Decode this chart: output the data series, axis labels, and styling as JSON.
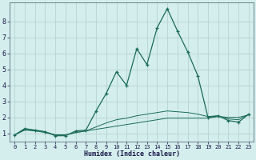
{
  "xlabel": "Humidex (Indice chaleur)",
  "bg_color": "#d4eeed",
  "grid_color": "#b0cccc",
  "line_color": "#1a6b5a",
  "xlim_min": -0.5,
  "xlim_max": 23.5,
  "ylim_min": 0.5,
  "ylim_max": 9.2,
  "xticks": [
    0,
    1,
    2,
    3,
    4,
    5,
    6,
    7,
    8,
    9,
    10,
    11,
    12,
    13,
    14,
    15,
    16,
    17,
    18,
    19,
    20,
    21,
    22,
    23
  ],
  "yticks": [
    1,
    2,
    3,
    4,
    5,
    6,
    7,
    8
  ],
  "series1_x": [
    0,
    1,
    2,
    3,
    4,
    5,
    6,
    7,
    8,
    9,
    10,
    11,
    12,
    13,
    14,
    15,
    16,
    17,
    18,
    19,
    20,
    21,
    22,
    23
  ],
  "series1_y": [
    0.9,
    1.3,
    1.2,
    1.1,
    0.85,
    0.85,
    1.15,
    1.2,
    2.4,
    3.5,
    4.85,
    4.0,
    6.3,
    5.3,
    7.6,
    8.8,
    7.4,
    6.1,
    4.6,
    2.0,
    2.1,
    1.8,
    1.7,
    2.2
  ],
  "series2_x": [
    0,
    1,
    2,
    3,
    4,
    5,
    6,
    7,
    8,
    9,
    10,
    11,
    12,
    13,
    14,
    15,
    16,
    17,
    18,
    19,
    20,
    21,
    22,
    23
  ],
  "series2_y": [
    0.9,
    1.2,
    1.15,
    1.05,
    0.9,
    0.9,
    1.05,
    1.15,
    1.25,
    1.35,
    1.45,
    1.55,
    1.65,
    1.75,
    1.85,
    1.95,
    1.95,
    1.95,
    1.95,
    1.95,
    2.05,
    2.0,
    2.0,
    2.15
  ],
  "series3_x": [
    0,
    1,
    2,
    3,
    4,
    5,
    6,
    7,
    8,
    9,
    10,
    11,
    12,
    13,
    14,
    15,
    16,
    17,
    18,
    19,
    20,
    21,
    22,
    23
  ],
  "series3_y": [
    0.9,
    1.25,
    1.2,
    1.1,
    0.9,
    0.9,
    1.05,
    1.15,
    1.4,
    1.65,
    1.85,
    1.95,
    2.1,
    2.2,
    2.3,
    2.4,
    2.35,
    2.3,
    2.2,
    2.05,
    2.1,
    1.9,
    1.85,
    2.2
  ]
}
